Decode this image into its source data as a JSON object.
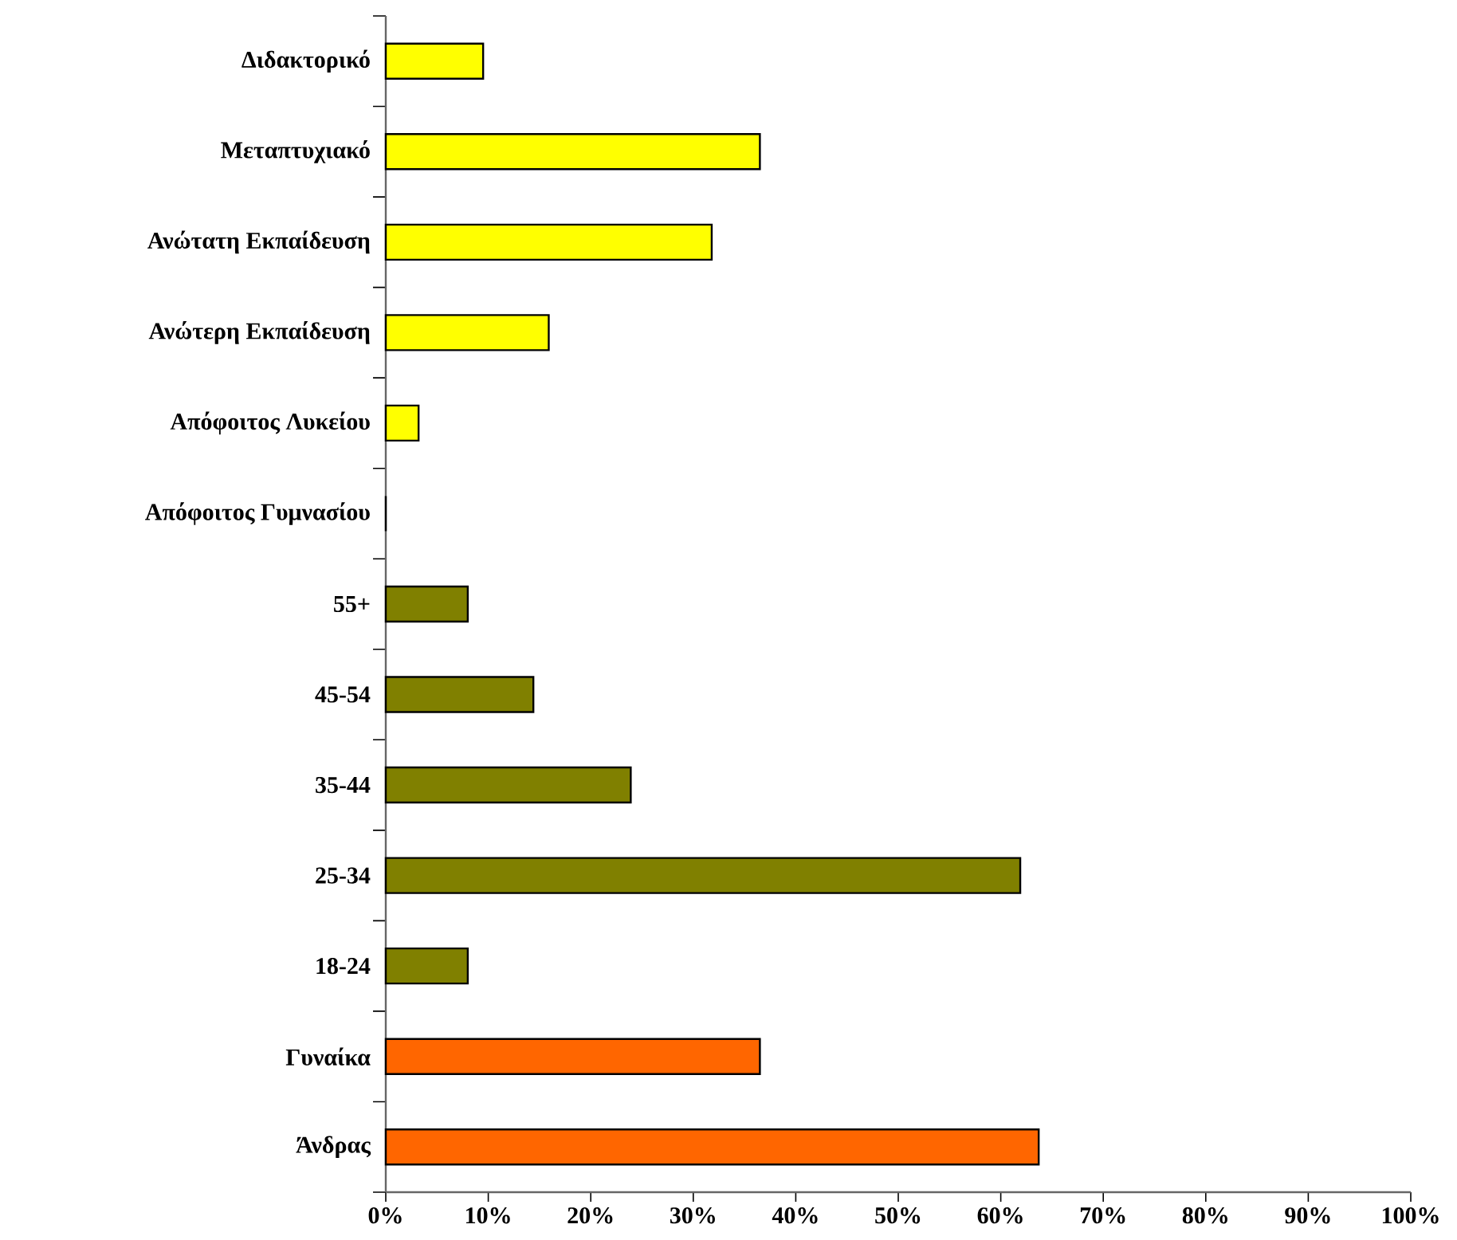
{
  "chart_data": {
    "type": "bar",
    "orientation": "horizontal",
    "categories": [
      "Διδακτορικό",
      "Μεταπτυχιακό",
      "Ανώτατη Εκπαίδευση",
      "Ανώτερη Εκπαίδευση",
      "Απόφοιτος Λυκείου",
      "Απόφοιτος Γυμνασίου",
      "55+",
      "45-54",
      "35-44",
      "25-34",
      "18-24",
      "Γυναίκα",
      "Άνδρας"
    ],
    "values": [
      9.5,
      36.5,
      31.8,
      15.9,
      3.2,
      0,
      8.0,
      14.4,
      23.9,
      61.9,
      8.0,
      36.5,
      63.7
    ],
    "colors": [
      "#ffff00",
      "#ffff00",
      "#ffff00",
      "#ffff00",
      "#ffff00",
      "#ffff00",
      "#808000",
      "#808000",
      "#808000",
      "#808000",
      "#808000",
      "#ff6600",
      "#ff6600"
    ],
    "xlim": [
      0,
      100
    ],
    "xticks": [
      {
        "value": 0,
        "label": "0%"
      },
      {
        "value": 10,
        "label": "10%"
      },
      {
        "value": 20,
        "label": "20%"
      },
      {
        "value": 30,
        "label": "30%"
      },
      {
        "value": 40,
        "label": "40%"
      },
      {
        "value": 50,
        "label": "50%"
      },
      {
        "value": 60,
        "label": "60%"
      },
      {
        "value": 70,
        "label": "70%"
      },
      {
        "value": 80,
        "label": "80%"
      },
      {
        "value": 90,
        "label": "90%"
      },
      {
        "value": 100,
        "label": "100%"
      }
    ],
    "data_labels": false
  }
}
